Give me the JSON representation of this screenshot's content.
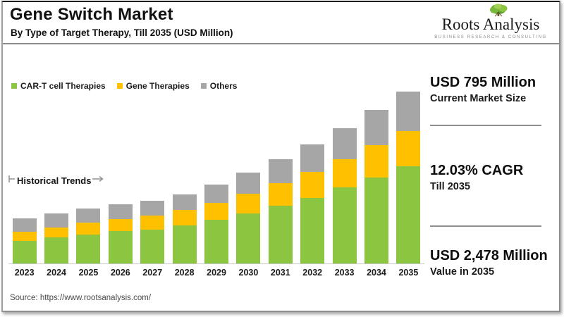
{
  "header": {
    "title": "Gene Switch Market",
    "subtitle": "By Type of Target Therapy, Till 2035 (USD Million)",
    "logo": {
      "name": "Roots Analysis",
      "tagline": "BUSINESS RESEARCH & CONSULTING",
      "icon": "tree-icon"
    }
  },
  "chart_data": {
    "type": "bar",
    "stacked": true,
    "title": "Gene Switch Market",
    "subtitle": "By Type of Target Therapy, Till 2035 (USD Million)",
    "unit": "USD Million",
    "categories": [
      "2023",
      "2024",
      "2025",
      "2026",
      "2027",
      "2028",
      "2029",
      "2030",
      "2031",
      "2032",
      "2033",
      "2034",
      "2035"
    ],
    "series": [
      {
        "name": "CAR-T cell Therapies",
        "color": "#8CC540",
        "values": [
          330,
          380,
          420,
          465,
          490,
          550,
          630,
          725,
          830,
          950,
          1100,
          1235,
          1405
        ]
      },
      {
        "name": "Gene Therapies",
        "color": "#FFC000",
        "values": [
          130,
          140,
          170,
          180,
          200,
          220,
          240,
          280,
          330,
          370,
          405,
          475,
          508
        ]
      },
      {
        "name": "Others",
        "color": "#A6A6A6",
        "values": [
          190,
          200,
          205,
          210,
          215,
          230,
          265,
          305,
          340,
          395,
          450,
          500,
          565
        ]
      }
    ],
    "totals": [
      650,
      720,
      795,
      855,
      905,
      1000,
      1135,
      1310,
      1500,
      1715,
      1955,
      2210,
      2478
    ],
    "annotation": "Historical Trends",
    "legend_position": "top-left",
    "ylim": [
      0,
      2600
    ],
    "gridlines": false,
    "axis_labels_shown": "x-only"
  },
  "stats": [
    {
      "value": "USD 795 Million",
      "label": "Current Market Size"
    },
    {
      "value": "12.03% CAGR",
      "label": "Till 2035"
    },
    {
      "value": "USD 2,478 Million",
      "label": "Value in 2035"
    }
  ],
  "footer": {
    "source": "Source: https://www.rootsanalysis.com/"
  }
}
